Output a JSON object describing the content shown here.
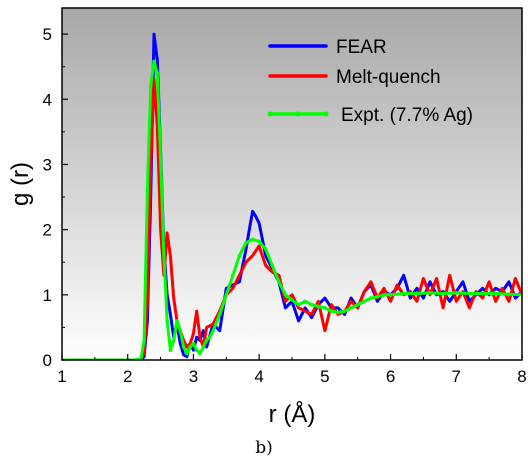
{
  "chart_data": {
    "type": "line",
    "xlabel": "r (Å)",
    "ylabel": "g (r)",
    "xlim": [
      1,
      8
    ],
    "ylim": [
      0,
      5.4
    ],
    "x_ticks": [
      1,
      2,
      3,
      4,
      5,
      6,
      7,
      8
    ],
    "y_ticks": [
      0,
      1,
      2,
      3,
      4,
      5
    ],
    "grid": false,
    "background": "gradient-grey",
    "legend_placement": "top-right",
    "caption": "b)",
    "series": [
      {
        "name": "FEAR",
        "color": "#0000ff",
        "marker": "none",
        "x": [
          1.0,
          2.2,
          2.25,
          2.3,
          2.35,
          2.4,
          2.45,
          2.5,
          2.55,
          2.6,
          2.65,
          2.7,
          2.75,
          2.8,
          2.85,
          2.9,
          2.95,
          3.0,
          3.05,
          3.1,
          3.15,
          3.2,
          3.3,
          3.4,
          3.5,
          3.6,
          3.7,
          3.8,
          3.85,
          3.9,
          3.95,
          4.0,
          4.1,
          4.2,
          4.3,
          4.4,
          4.5,
          4.6,
          4.7,
          4.8,
          4.9,
          5.0,
          5.1,
          5.2,
          5.3,
          5.4,
          5.5,
          5.6,
          5.7,
          5.8,
          5.9,
          6.0,
          6.1,
          6.2,
          6.3,
          6.4,
          6.5,
          6.6,
          6.7,
          6.8,
          6.9,
          7.0,
          7.1,
          7.2,
          7.3,
          7.4,
          7.5,
          7.6,
          7.7,
          7.8,
          7.9,
          8.0
        ],
        "y": [
          0,
          0,
          0.05,
          0.6,
          2.5,
          5.0,
          4.6,
          3.2,
          1.7,
          1.0,
          0.7,
          0.35,
          0.55,
          0.25,
          0.08,
          0.05,
          0.25,
          0.15,
          0.35,
          0.3,
          0.45,
          0.2,
          0.55,
          0.45,
          1.1,
          1.15,
          1.2,
          1.7,
          2.0,
          2.28,
          2.2,
          2.1,
          1.6,
          1.4,
          1.2,
          0.8,
          0.9,
          0.6,
          0.8,
          0.65,
          0.85,
          0.95,
          0.8,
          0.8,
          0.7,
          0.95,
          0.8,
          1.05,
          1.15,
          0.9,
          1.05,
          1.0,
          1.1,
          1.3,
          0.95,
          1.1,
          0.95,
          1.2,
          1.0,
          1.05,
          0.9,
          1.05,
          1.2,
          0.9,
          1.0,
          1.1,
          1.0,
          1.1,
          1.05,
          1.2,
          0.95,
          1.05
        ]
      },
      {
        "name": "Melt-quench",
        "color": "#ff0000",
        "marker": "none",
        "x": [
          1.0,
          2.15,
          2.2,
          2.25,
          2.3,
          2.35,
          2.4,
          2.45,
          2.5,
          2.55,
          2.6,
          2.65,
          2.7,
          2.75,
          2.8,
          2.85,
          2.9,
          2.95,
          3.0,
          3.05,
          3.1,
          3.15,
          3.2,
          3.3,
          3.4,
          3.5,
          3.6,
          3.7,
          3.8,
          3.9,
          4.0,
          4.1,
          4.2,
          4.3,
          4.4,
          4.5,
          4.6,
          4.7,
          4.8,
          4.9,
          5.0,
          5.1,
          5.2,
          5.3,
          5.4,
          5.5,
          5.6,
          5.7,
          5.8,
          5.9,
          6.0,
          6.1,
          6.2,
          6.3,
          6.4,
          6.5,
          6.6,
          6.7,
          6.8,
          6.9,
          7.0,
          7.1,
          7.2,
          7.3,
          7.4,
          7.5,
          7.6,
          7.7,
          7.8,
          7.9,
          8.0
        ],
        "y": [
          0,
          0,
          0.02,
          0.1,
          0.9,
          3.0,
          4.3,
          3.6,
          2.0,
          1.3,
          1.95,
          1.6,
          0.95,
          0.6,
          0.45,
          0.3,
          0.2,
          0.25,
          0.4,
          0.75,
          0.35,
          0.2,
          0.5,
          0.55,
          0.75,
          1.0,
          1.1,
          1.3,
          1.5,
          1.6,
          1.75,
          1.45,
          1.35,
          1.3,
          0.9,
          1.0,
          0.8,
          0.75,
          0.7,
          0.9,
          0.45,
          0.85,
          0.7,
          0.75,
          0.9,
          0.8,
          1.05,
          1.2,
          0.95,
          1.1,
          0.9,
          1.15,
          1.0,
          1.05,
          0.9,
          1.25,
          1.0,
          1.25,
          0.8,
          1.3,
          0.9,
          1.05,
          0.8,
          1.05,
          0.95,
          1.2,
          0.9,
          1.1,
          0.9,
          1.25,
          1.0
        ]
      },
      {
        "name": "Expt. (7.7% Ag)",
        "color": "#00ff00",
        "marker": "dot",
        "x": [
          1.0,
          2.1,
          2.2,
          2.25,
          2.3,
          2.35,
          2.4,
          2.45,
          2.5,
          2.55,
          2.6,
          2.65,
          2.7,
          2.75,
          2.8,
          2.85,
          2.9,
          2.95,
          3.0,
          3.05,
          3.1,
          3.15,
          3.2,
          3.25,
          3.3,
          3.4,
          3.5,
          3.6,
          3.7,
          3.8,
          3.9,
          4.0,
          4.1,
          4.2,
          4.3,
          4.4,
          4.5,
          4.6,
          4.7,
          4.8,
          4.9,
          5.0,
          5.1,
          5.2,
          5.3,
          5.4,
          5.5,
          5.6,
          5.7,
          5.8,
          5.9,
          6.0,
          6.2,
          6.4,
          6.6,
          6.8,
          7.0,
          7.2,
          7.4,
          7.6,
          7.8,
          8.0
        ],
        "y": [
          0,
          0,
          0.02,
          0.3,
          2.6,
          4.2,
          4.58,
          4.4,
          3.1,
          1.6,
          0.6,
          0.15,
          0.3,
          0.6,
          0.45,
          0.2,
          0.1,
          0.2,
          0.25,
          0.15,
          0.1,
          0.2,
          0.3,
          0.35,
          0.45,
          0.7,
          1.0,
          1.3,
          1.6,
          1.8,
          1.85,
          1.82,
          1.7,
          1.45,
          1.2,
          1.0,
          0.92,
          0.85,
          0.9,
          0.85,
          0.82,
          0.8,
          0.75,
          0.73,
          0.75,
          0.8,
          0.85,
          0.9,
          0.95,
          0.97,
          1.0,
          1.0,
          1.02,
          1.02,
          1.03,
          1.02,
          1.03,
          1.02,
          1.02,
          1.02,
          1.01,
          1.0
        ]
      }
    ]
  }
}
